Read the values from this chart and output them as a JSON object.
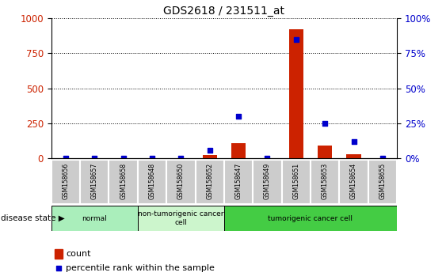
{
  "title": "GDS2618 / 231511_at",
  "samples": [
    "GSM158656",
    "GSM158657",
    "GSM158658",
    "GSM158648",
    "GSM158650",
    "GSM158652",
    "GSM158647",
    "GSM158649",
    "GSM158651",
    "GSM158653",
    "GSM158654",
    "GSM158655"
  ],
  "counts": [
    0,
    0,
    0,
    0,
    0,
    20,
    110,
    0,
    920,
    90,
    30,
    0
  ],
  "percentile": [
    0,
    0,
    0,
    0,
    0,
    5.5,
    30,
    0,
    85,
    25,
    12,
    0
  ],
  "groups": [
    {
      "label": "normal",
      "start": 0,
      "end": 3,
      "color": "#aaeebb"
    },
    {
      "label": "non-tumorigenic cancer\ncell",
      "start": 3,
      "end": 6,
      "color": "#ccf5cc"
    },
    {
      "label": "tumorigenic cancer cell",
      "start": 6,
      "end": 12,
      "color": "#44cc44"
    }
  ],
  "bar_color": "#cc2200",
  "dot_color": "#0000cc",
  "left_tick_color": "#cc2200",
  "right_tick_color": "#0000cc",
  "ylim_left": [
    0,
    1000
  ],
  "ylim_right": [
    0,
    100
  ],
  "yticks_left": [
    0,
    250,
    500,
    750,
    1000
  ],
  "yticks_right": [
    0,
    25,
    50,
    75,
    100
  ],
  "tick_label_area_color": "#cccccc",
  "legend_count_color": "#cc2200",
  "legend_pct_color": "#0000cc",
  "legend_count_label": "count",
  "legend_pct_label": "percentile rank within the sample",
  "disease_state_label": "disease state"
}
